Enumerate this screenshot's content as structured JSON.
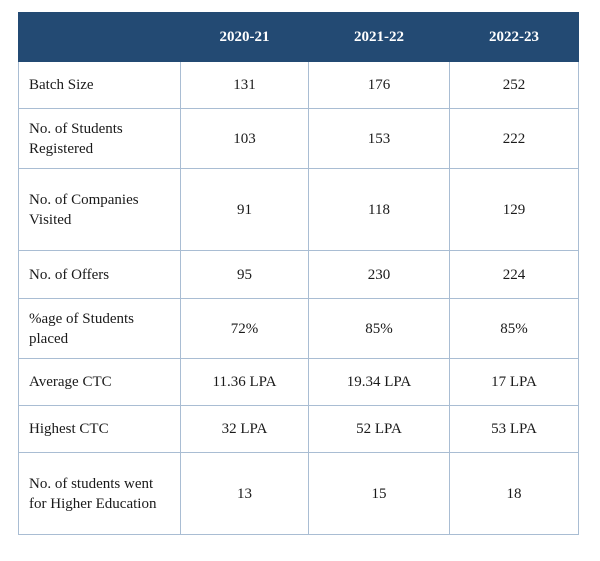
{
  "table": {
    "headers": [
      "",
      "2020-21",
      "2021-22",
      "2022-23"
    ],
    "rows": [
      {
        "label": "Batch Size",
        "values": [
          "131",
          "176",
          "252"
        ]
      },
      {
        "label": "No. of Students Registered",
        "values": [
          "103",
          "153",
          "222"
        ]
      },
      {
        "label": "No. of Companies Visited",
        "values": [
          "91",
          "118",
          "129"
        ]
      },
      {
        "label": "No. of Offers",
        "values": [
          "95",
          "230",
          "224"
        ]
      },
      {
        "label": "%age of Students placed",
        "values": [
          "72%",
          "85%",
          "85%"
        ]
      },
      {
        "label": "Average CTC",
        "values": [
          "11.36 LPA",
          "19.34 LPA",
          "17 LPA"
        ]
      },
      {
        "label": "Highest CTC",
        "values": [
          "32 LPA",
          "52 LPA",
          "53 LPA"
        ]
      },
      {
        "label": "No. of students went for Higher Education",
        "values": [
          "13",
          "15",
          "18"
        ]
      }
    ]
  },
  "colors": {
    "header_bg": "#234a73",
    "header_text": "#ffffff",
    "border": "#a9bdd3"
  }
}
